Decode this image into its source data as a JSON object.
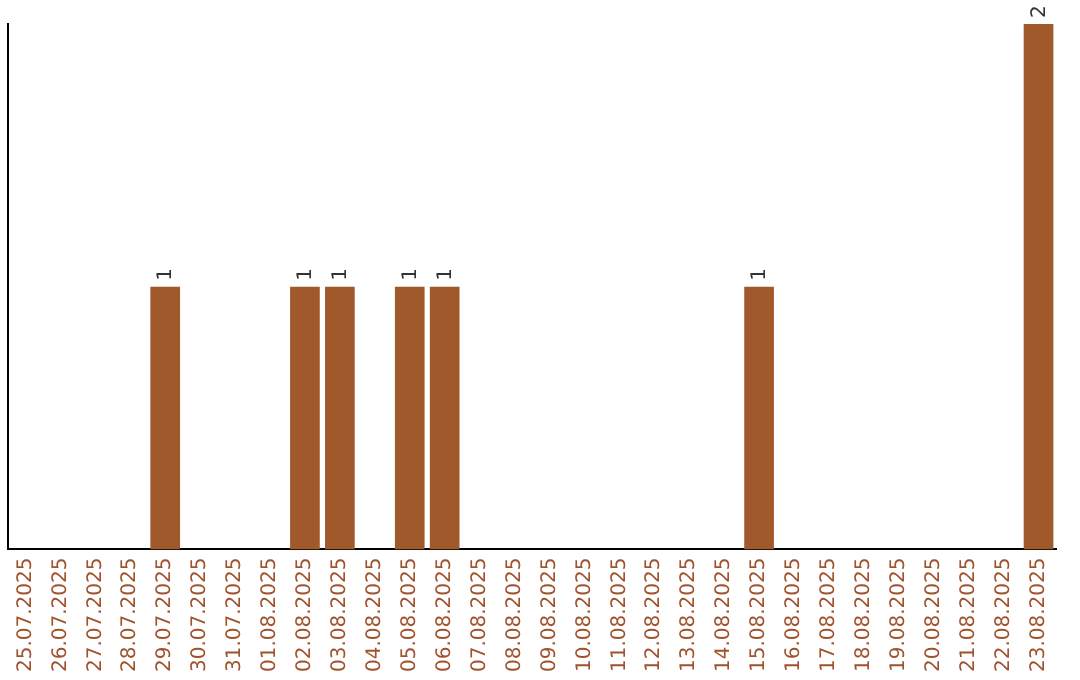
{
  "chart_data": {
    "type": "bar",
    "categories": [
      "25.07.2025",
      "26.07.2025",
      "27.07.2025",
      "28.07.2025",
      "29.07.2025",
      "30.07.2025",
      "31.07.2025",
      "01.08.2025",
      "02.08.2025",
      "03.08.2025",
      "04.08.2025",
      "05.08.2025",
      "06.08.2025",
      "07.08.2025",
      "08.08.2025",
      "09.08.2025",
      "10.08.2025",
      "11.08.2025",
      "12.08.2025",
      "13.08.2025",
      "14.08.2025",
      "15.08.2025",
      "16.08.2025",
      "17.08.2025",
      "18.08.2025",
      "19.08.2025",
      "20.08.2025",
      "21.08.2025",
      "22.08.2025",
      "23.08.2025"
    ],
    "values": [
      0,
      0,
      0,
      0,
      1,
      0,
      0,
      0,
      1,
      1,
      0,
      1,
      1,
      0,
      0,
      0,
      0,
      0,
      0,
      0,
      0,
      1,
      0,
      0,
      0,
      0,
      0,
      0,
      0,
      2
    ],
    "value_labels": [
      null,
      null,
      null,
      null,
      "1",
      null,
      null,
      null,
      "1",
      "1",
      null,
      "1",
      "1",
      null,
      null,
      null,
      null,
      null,
      null,
      null,
      null,
      "1",
      null,
      null,
      null,
      null,
      null,
      null,
      null,
      "2"
    ],
    "color": "#a0592a",
    "grid": false,
    "legend": false
  }
}
